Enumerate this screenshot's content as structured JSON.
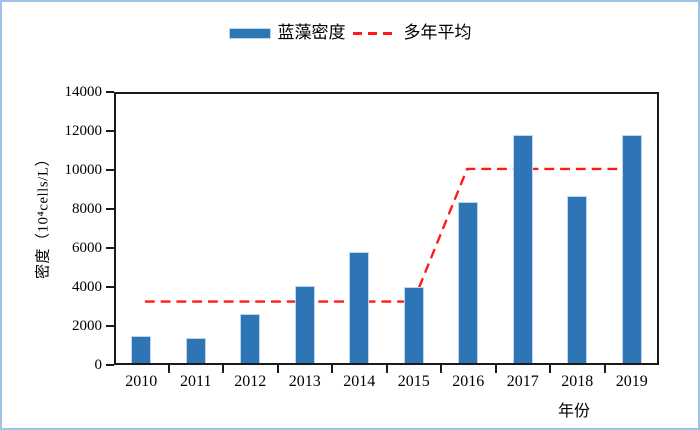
{
  "chart_data": {
    "type": "bar",
    "title": "",
    "categories": [
      "2010",
      "2011",
      "2012",
      "2013",
      "2014",
      "2015",
      "2016",
      "2017",
      "2018",
      "2019"
    ],
    "series": [
      {
        "name": "蓝藻密度",
        "type": "bar",
        "values": [
          1400,
          1300,
          2500,
          3950,
          5700,
          3900,
          8250,
          11700,
          8550,
          11700
        ],
        "color": "#2E75B6"
      },
      {
        "name": "多年平均",
        "type": "line",
        "dashed": true,
        "values": [
          3200,
          3200,
          3200,
          3200,
          3200,
          3200,
          10100,
          10100,
          10100,
          10100
        ],
        "color": "#FF1A1A"
      }
    ],
    "xlabel": "年份",
    "ylabel": "密度（10⁴cells/L）",
    "ylim": [
      0,
      14000
    ],
    "ytick_step": 2000,
    "ytick_labels": [
      "0",
      "2000",
      "4000",
      "6000",
      "8000",
      "10000",
      "12000",
      "14000"
    ],
    "legend_position": "top-center",
    "grid": false
  },
  "colors": {
    "frame_border": "#9DC3E6",
    "axis": "#1A1A1A",
    "bar_fill": "#2E75B6",
    "bar_edge": "#BDD7EE",
    "line": "#FF1A1A",
    "background": "#FFFFFF"
  }
}
